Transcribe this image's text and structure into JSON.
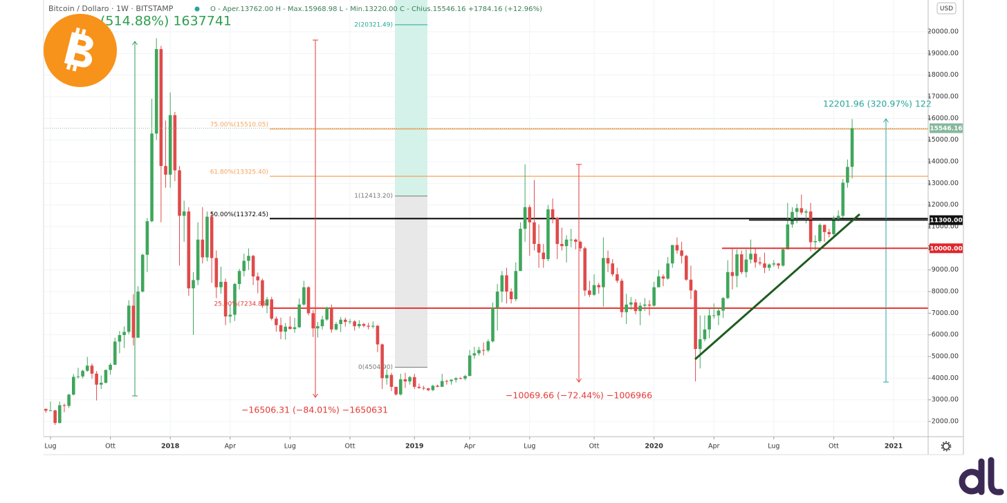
{
  "chart_data": {
    "type": "candlestick",
    "title": "Bitcoin / Dollaro · 1W · BITSTAMP",
    "ohlc_legend": "O - Aper.13762.00  H - Max.15968.98  L - Min.13220.00  C - Chius.15546.16  +1784.16 (+12.96%)",
    "currency": "USD",
    "up_color": "#3fa65c",
    "down_color": "#e04a4a",
    "grid": true,
    "ylim": [
      1298,
      21468
    ],
    "yticks": [
      {
        "value": 2000,
        "label": "2000.00"
      },
      {
        "value": 3000,
        "label": "3000.00"
      },
      {
        "value": 4000,
        "label": "4000.00"
      },
      {
        "value": 5000,
        "label": "5000.00"
      },
      {
        "value": 6000,
        "label": "6000.00"
      },
      {
        "value": 7000,
        "label": "7000.00"
      },
      {
        "value": 8000,
        "label": "8000.00"
      },
      {
        "value": 9000,
        "label": "9000.00"
      },
      {
        "value": 10000,
        "label": "10000.00"
      },
      {
        "value": 11000,
        "label": "11000.00"
      },
      {
        "value": 12000,
        "label": "12000.00"
      },
      {
        "value": 13000,
        "label": "13000.00"
      },
      {
        "value": 14000,
        "label": "14000.00"
      },
      {
        "value": 15000,
        "label": "15000.00"
      },
      {
        "value": 16000,
        "label": "16000.00"
      },
      {
        "value": 17000,
        "label": "17000.00"
      },
      {
        "value": 18000,
        "label": "18000.00"
      },
      {
        "value": 19000,
        "label": "19000.00"
      },
      {
        "value": 20000,
        "label": "20000.00"
      }
    ],
    "categories": [
      null,
      "Lug",
      null,
      null,
      null,
      null,
      null,
      null,
      null,
      null,
      null,
      null,
      null,
      null,
      "Ott",
      null,
      null,
      null,
      null,
      null,
      null,
      null,
      null,
      null,
      null,
      null,
      null,
      "2018",
      null,
      null,
      null,
      null,
      null,
      null,
      null,
      null,
      null,
      null,
      null,
      null,
      "Apr",
      null,
      null,
      null,
      null,
      null,
      null,
      null,
      null,
      null,
      null,
      null,
      null,
      "Lug",
      null,
      null,
      null,
      null,
      null,
      null,
      null,
      null,
      null,
      null,
      null,
      null,
      "Ott",
      null,
      null,
      null,
      null,
      null,
      null,
      null,
      null,
      null,
      null,
      null,
      null,
      null,
      "2019",
      null,
      null,
      null,
      null,
      null,
      null,
      null,
      null,
      null,
      null,
      null,
      "Apr",
      null,
      null,
      null,
      null,
      null,
      null,
      null,
      null,
      null,
      null,
      null,
      null,
      "Lug",
      null,
      null,
      null,
      null,
      null,
      null,
      null,
      null,
      null,
      null,
      null,
      null,
      null,
      "Ott",
      null,
      null,
      null,
      null,
      null,
      null,
      null,
      null,
      null,
      null,
      null,
      null,
      "2020",
      null,
      null,
      null,
      null,
      null,
      null,
      null,
      null,
      null,
      null,
      null,
      null,
      "Apr",
      null,
      null,
      null,
      null,
      null,
      null,
      null,
      null,
      null,
      null,
      null,
      null,
      "Lug",
      null,
      null,
      null,
      null,
      null,
      null,
      null,
      null,
      null,
      null,
      null,
      null,
      "Ott",
      null,
      null,
      null,
      null,
      null,
      null,
      null,
      null,
      null,
      null,
      null,
      null,
      "2021",
      null,
      null,
      null,
      null,
      null,
      null,
      null
    ],
    "ohlc": [
      [
        2580,
        2600,
        2400,
        2500
      ],
      [
        2500,
        2920,
        2480,
        2510
      ],
      [
        2510,
        2540,
        1840,
        1930
      ],
      [
        1930,
        2920,
        1910,
        2750
      ],
      [
        2750,
        2830,
        2430,
        2720
      ],
      [
        2720,
        3280,
        2620,
        3240
      ],
      [
        3240,
        4190,
        3200,
        4060
      ],
      [
        4060,
        4480,
        3980,
        4080
      ],
      [
        4080,
        4390,
        3990,
        4340
      ],
      [
        4340,
        4980,
        4300,
        4580
      ],
      [
        4580,
        4680,
        3970,
        4210
      ],
      [
        4210,
        4330,
        2970,
        3700
      ],
      [
        3700,
        4120,
        3500,
        3790
      ],
      [
        3790,
        4400,
        3750,
        4380
      ],
      [
        4380,
        4700,
        4160,
        4620
      ],
      [
        4620,
        5870,
        4610,
        5690
      ],
      [
        5690,
        6180,
        5150,
        5990
      ],
      [
        5990,
        6390,
        5390,
        6140
      ],
      [
        6140,
        7600,
        6030,
        7350
      ],
      [
        7350,
        7880,
        5510,
        5870
      ],
      [
        5870,
        8250,
        5860,
        8000
      ],
      [
        8000,
        9750,
        7950,
        9700
      ],
      [
        9700,
        11400,
        8900,
        11250
      ],
      [
        11250,
        16900,
        11200,
        15300
      ],
      [
        15300,
        19700,
        15000,
        19200
      ],
      [
        19200,
        19350,
        11200,
        13800
      ],
      [
        13800,
        15900,
        12800,
        13400
      ],
      [
        13400,
        17200,
        12800,
        16150
      ],
      [
        16150,
        16300,
        13100,
        13600
      ],
      [
        13600,
        13800,
        9200,
        11500
      ],
      [
        11500,
        12200,
        10300,
        11700
      ],
      [
        11700,
        11900,
        7800,
        8150
      ],
      [
        8150,
        8900,
        6000,
        8530
      ],
      [
        8530,
        11200,
        8300,
        10400
      ],
      [
        10400,
        11900,
        9300,
        9580
      ],
      [
        9580,
        11700,
        9400,
        11460
      ],
      [
        11460,
        11700,
        8400,
        9550
      ],
      [
        9550,
        9900,
        7700,
        8200
      ],
      [
        8200,
        9150,
        7900,
        8450
      ],
      [
        8450,
        8600,
        6450,
        6850
      ],
      [
        6850,
        7400,
        6550,
        6930
      ],
      [
        6930,
        8400,
        6640,
        8350
      ],
      [
        8350,
        9050,
        8100,
        8950
      ],
      [
        8950,
        9750,
        8700,
        9420
      ],
      [
        9420,
        9990,
        9000,
        9650
      ],
      [
        9650,
        9700,
        8300,
        8700
      ],
      [
        8700,
        8880,
        7920,
        8520
      ],
      [
        8520,
        8600,
        7250,
        7350
      ],
      [
        7350,
        7750,
        7000,
        7640
      ],
      [
        7640,
        7760,
        6670,
        6750
      ],
      [
        6750,
        6850,
        6150,
        6450
      ],
      [
        6450,
        6800,
        5800,
        6150
      ],
      [
        6150,
        6550,
        5780,
        6380
      ],
      [
        6380,
        6850,
        6250,
        6270
      ],
      [
        6270,
        6790,
        6100,
        6350
      ],
      [
        6350,
        7680,
        6330,
        7400
      ],
      [
        7400,
        8500,
        7350,
        8200
      ],
      [
        8200,
        8250,
        6900,
        7000
      ],
      [
        7000,
        7150,
        5900,
        6300
      ],
      [
        6300,
        6600,
        5880,
        6400
      ],
      [
        6400,
        6880,
        6250,
        6710
      ],
      [
        6710,
        7300,
        6650,
        7270
      ],
      [
        7270,
        7400,
        6100,
        6250
      ],
      [
        6250,
        6600,
        6200,
        6500
      ],
      [
        6500,
        6830,
        6130,
        6700
      ],
      [
        6700,
        6800,
        6380,
        6600
      ],
      [
        6600,
        6740,
        6500,
        6620
      ],
      [
        6620,
        6680,
        6200,
        6400
      ],
      [
        6400,
        6680,
        6300,
        6500
      ],
      [
        6500,
        6560,
        6350,
        6420
      ],
      [
        6420,
        6560,
        6250,
        6380
      ],
      [
        6380,
        6620,
        6300,
        6420
      ],
      [
        6420,
        6460,
        5200,
        5560
      ],
      [
        5560,
        5600,
        3500,
        4000
      ],
      [
        4000,
        4400,
        3700,
        4150
      ],
      [
        4150,
        4250,
        3400,
        3600
      ],
      [
        3600,
        3600,
        3200,
        3250
      ],
      [
        3250,
        4200,
        3200,
        3950
      ],
      [
        3950,
        4250,
        3550,
        3850
      ],
      [
        3850,
        4100,
        3700,
        4050
      ],
      [
        4050,
        4200,
        3500,
        3600
      ],
      [
        3600,
        3750,
        3500,
        3550
      ],
      [
        3550,
        3650,
        3450,
        3530
      ],
      [
        3530,
        3550,
        3400,
        3450
      ],
      [
        3450,
        3700,
        3400,
        3650
      ],
      [
        3650,
        3700,
        3580,
        3600
      ],
      [
        3600,
        4200,
        3600,
        3870
      ],
      [
        3870,
        3930,
        3700,
        3860
      ],
      [
        3860,
        3950,
        3700,
        3930
      ],
      [
        3930,
        4050,
        3800,
        4000
      ],
      [
        4000,
        4050,
        3950,
        3980
      ],
      [
        3980,
        4150,
        3900,
        4100
      ],
      [
        4100,
        5300,
        4100,
        5050
      ],
      [
        5050,
        5450,
        4900,
        5150
      ],
      [
        5150,
        5450,
        5050,
        5300
      ],
      [
        5300,
        5650,
        5050,
        5280
      ],
      [
        5280,
        5800,
        5200,
        5700
      ],
      [
        5700,
        7500,
        5650,
        7250
      ],
      [
        7250,
        8350,
        6200,
        8000
      ],
      [
        8000,
        8950,
        7500,
        8750
      ],
      [
        8750,
        9100,
        7450,
        8000
      ],
      [
        8000,
        8150,
        7450,
        7650
      ],
      [
        7650,
        9350,
        7550,
        8950
      ],
      [
        8950,
        11200,
        8950,
        10900
      ],
      [
        10900,
        13880,
        10300,
        11900
      ],
      [
        11900,
        12000,
        9650,
        11200
      ],
      [
        11200,
        13150,
        9900,
        10200
      ],
      [
        10200,
        11100,
        9100,
        9800
      ],
      [
        9800,
        10200,
        9100,
        9500
      ],
      [
        9500,
        12000,
        9400,
        11800
      ],
      [
        11800,
        12300,
        11150,
        11400
      ],
      [
        11400,
        11450,
        9500,
        10200
      ],
      [
        10200,
        10950,
        9900,
        10100
      ],
      [
        10100,
        10600,
        9350,
        10400
      ],
      [
        10400,
        10900,
        10050,
        10400
      ],
      [
        10400,
        10450,
        9950,
        10300
      ],
      [
        10300,
        10350,
        9850,
        10000
      ],
      [
        10000,
        10080,
        7800,
        8050
      ],
      [
        8050,
        8500,
        7750,
        7850
      ],
      [
        7850,
        8800,
        7800,
        8300
      ],
      [
        8300,
        8400,
        7900,
        8200
      ],
      [
        8200,
        10500,
        7300,
        9550
      ],
      [
        9550,
        9900,
        8900,
        9300
      ],
      [
        9300,
        9500,
        8700,
        8800
      ],
      [
        8800,
        9100,
        8400,
        8500
      ],
      [
        8500,
        8600,
        6800,
        7050
      ],
      [
        7050,
        7900,
        6500,
        7400
      ],
      [
        7400,
        7750,
        7150,
        7500
      ],
      [
        7500,
        7650,
        6950,
        7100
      ],
      [
        7100,
        7500,
        6450,
        7350
      ],
      [
        7350,
        7700,
        7100,
        7400
      ],
      [
        7400,
        7600,
        6900,
        7350
      ],
      [
        7350,
        8450,
        7300,
        8200
      ],
      [
        8200,
        9000,
        8200,
        8700
      ],
      [
        8700,
        8800,
        8250,
        8600
      ],
      [
        8600,
        9600,
        8550,
        9300
      ],
      [
        9300,
        10150,
        9100,
        10150
      ],
      [
        10150,
        10500,
        9750,
        9900
      ],
      [
        9900,
        10300,
        9300,
        9650
      ],
      [
        9650,
        9700,
        8500,
        8550
      ],
      [
        8550,
        9200,
        7650,
        8050
      ],
      [
        8050,
        8100,
        3850,
        5350
      ],
      [
        5350,
        6900,
        4450,
        5800
      ],
      [
        5800,
        6900,
        5700,
        6250
      ],
      [
        6250,
        7200,
        5850,
        6900
      ],
      [
        6900,
        7450,
        6750,
        6900
      ],
      [
        6900,
        7250,
        6450,
        7120
      ],
      [
        7120,
        7750,
        6780,
        7700
      ],
      [
        7700,
        9450,
        7650,
        8900
      ],
      [
        8900,
        10000,
        8100,
        8720
      ],
      [
        8720,
        9950,
        8200,
        9720
      ],
      [
        9720,
        9900,
        8800,
        8900
      ],
      [
        8900,
        9950,
        8650,
        9480
      ],
      [
        9480,
        10400,
        9300,
        9750
      ],
      [
        9750,
        9990,
        9100,
        9350
      ],
      [
        9350,
        9600,
        9200,
        9300
      ],
      [
        9300,
        9800,
        8850,
        9100
      ],
      [
        9100,
        9300,
        8950,
        9250
      ],
      [
        9250,
        9450,
        9150,
        9300
      ],
      [
        9300,
        9320,
        9050,
        9200
      ],
      [
        9200,
        10000,
        9150,
        9950
      ],
      [
        9950,
        12100,
        9950,
        11100
      ],
      [
        11100,
        11900,
        10950,
        11680
      ],
      [
        11680,
        12050,
        11150,
        11850
      ],
      [
        11850,
        12480,
        11550,
        11650
      ],
      [
        11650,
        11800,
        11150,
        11700
      ],
      [
        11700,
        12100,
        9850,
        10280
      ],
      [
        10280,
        10600,
        9900,
        10330
      ],
      [
        10330,
        11150,
        10250,
        11080
      ],
      [
        11080,
        11100,
        10300,
        10750
      ],
      [
        10750,
        10900,
        10500,
        10650
      ],
      [
        10650,
        11500,
        10550,
        11370
      ],
      [
        11370,
        11750,
        11250,
        11500
      ],
      [
        11500,
        13200,
        11400,
        13030
      ],
      [
        13030,
        14100,
        12800,
        13760
      ],
      [
        13762,
        15968.98,
        13220,
        15546.16
      ],
      null,
      null,
      null,
      null,
      null,
      null,
      null,
      null,
      null,
      null,
      null,
      null,
      null,
      null,
      null,
      null
    ],
    "fib_levels": [
      {
        "value": 15510.05,
        "label": "75.00%(15510.05)",
        "color": "#f5a25d"
      },
      {
        "value": 13325.4,
        "label": "61.80%(13325.40)",
        "color": "#f5a25d"
      },
      {
        "value": 11372.45,
        "label": "50.00%(11372.45)",
        "color": "#000000"
      },
      {
        "value": 7234.85,
        "label": "25.00%(7234.85)",
        "color": "#e53935"
      }
    ],
    "projection_levels": [
      {
        "value": 20321.49,
        "label": "2(20321.49)",
        "color": "#26a69a"
      },
      {
        "value": 12413.2,
        "label": "1(12413.20)",
        "color": "#787878"
      },
      {
        "value": 4504.9,
        "label": "0(4504.90)",
        "color": "#787878"
      }
    ],
    "price_lines": [
      {
        "value": 15546.16,
        "label": "15546.16",
        "color": "#86b89c"
      },
      {
        "value": 11300,
        "label": "11300.00",
        "color": "#111111"
      },
      {
        "value": 10000,
        "label": "10000.00",
        "color": "#e0262b"
      }
    ],
    "measurements": [
      {
        "text": "(514.88%) 1637741",
        "color": "#2e9e4e"
      },
      {
        "text": "−16506.31 (−84.01%) −1650631",
        "color": "#e53935"
      },
      {
        "text": "−10069.66 (−72.44%) −1006966",
        "color": "#e53935"
      },
      {
        "text": "12201.96 (320.97%) 122",
        "color": "#26a69a"
      }
    ]
  }
}
